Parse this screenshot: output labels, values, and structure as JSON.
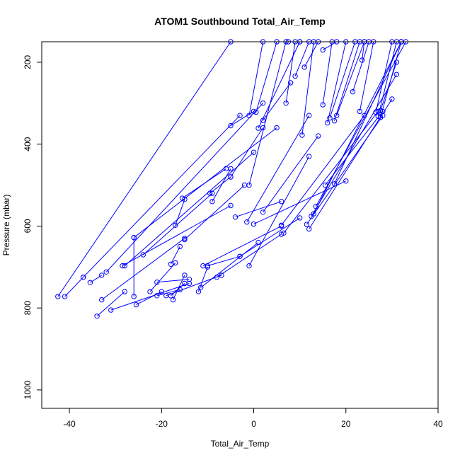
{
  "chart_data": {
    "type": "scatter",
    "title": "ATOM1 Southbound Total_Air_Temp",
    "xlabel": "Total_Air_Temp",
    "ylabel": "Pressure (mbar)",
    "xlim": [
      -46,
      40
    ],
    "ylim": [
      1045,
      150
    ],
    "y_reversed": true,
    "x_ticks": [
      -40,
      -20,
      0,
      20,
      40
    ],
    "y_ticks": [
      200,
      400,
      600,
      800,
      1000
    ],
    "grid": false,
    "color": "#0000ff",
    "series": [
      {
        "points": [
          [
            -42.5,
            772
          ],
          [
            -5,
            150
          ]
        ]
      },
      {
        "points": [
          [
            -41,
            772
          ],
          [
            -37,
            725
          ]
        ]
      },
      {
        "points": [
          [
            -37,
            725
          ],
          [
            -3,
            330
          ]
        ]
      },
      {
        "points": [
          [
            -35.5,
            738
          ],
          [
            -33,
            720
          ]
        ]
      },
      {
        "points": [
          [
            -34,
            820
          ],
          [
            -28,
            760
          ]
        ]
      },
      {
        "points": [
          [
            -33,
            780
          ],
          [
            -15,
            630
          ]
        ]
      },
      {
        "points": [
          [
            -32,
            712
          ],
          [
            2,
            300
          ]
        ]
      },
      {
        "points": [
          [
            -31,
            805
          ],
          [
            -14,
            740
          ]
        ]
      },
      {
        "points": [
          [
            -28.5,
            697
          ],
          [
            -5,
            550
          ]
        ]
      },
      {
        "points": [
          [
            -28,
            697
          ],
          [
            0,
            420
          ]
        ]
      },
      {
        "points": [
          [
            -26,
            772
          ],
          [
            -26,
            628
          ]
        ]
      },
      {
        "points": [
          [
            -26,
            628
          ],
          [
            5,
            360
          ]
        ]
      },
      {
        "points": [
          [
            -25.5,
            792
          ],
          [
            -20,
            760
          ]
        ]
      },
      {
        "points": [
          [
            -24,
            670
          ],
          [
            -9,
            520
          ]
        ]
      },
      {
        "points": [
          [
            -22.5,
            760
          ],
          [
            -17,
            690
          ]
        ]
      },
      {
        "points": [
          [
            -21,
            770
          ],
          [
            -16,
            755
          ]
        ]
      },
      {
        "points": [
          [
            -21,
            737
          ],
          [
            -14,
            730
          ]
        ]
      },
      {
        "points": [
          [
            -19,
            770
          ],
          [
            -7,
            720
          ]
        ]
      },
      {
        "points": [
          [
            -18,
            770
          ],
          [
            -15,
            740
          ]
        ]
      },
      {
        "points": [
          [
            -18,
            693
          ],
          [
            -16,
            650
          ]
        ]
      },
      {
        "points": [
          [
            -17.5,
            780
          ],
          [
            -15,
            720
          ]
        ]
      },
      {
        "points": [
          [
            -17,
            598
          ],
          [
            -15,
            535
          ]
        ]
      },
      {
        "points": [
          [
            -15.5,
            532
          ],
          [
            -6,
            460
          ]
        ]
      },
      {
        "points": [
          [
            -15,
            633
          ],
          [
            -2,
            500
          ]
        ]
      },
      {
        "points": [
          [
            -12,
            760
          ],
          [
            -10,
            700
          ]
        ]
      },
      {
        "points": [
          [
            -11.5,
            750
          ],
          [
            1,
            640
          ]
        ]
      },
      {
        "points": [
          [
            -11,
            697
          ],
          [
            6,
            600
          ]
        ]
      },
      {
        "points": [
          [
            -10,
            697
          ],
          [
            -3,
            674
          ]
        ]
      },
      {
        "points": [
          [
            -9.5,
            520
          ],
          [
            -5,
            480
          ]
        ]
      },
      {
        "points": [
          [
            -9,
            540
          ],
          [
            -5,
            460
          ]
        ]
      },
      {
        "points": [
          [
            -8,
            725
          ],
          [
            6,
            620
          ]
        ]
      },
      {
        "points": [
          [
            -5,
            480
          ],
          [
            2,
            360
          ]
        ]
      },
      {
        "points": [
          [
            -5,
            355
          ],
          [
            0,
            320
          ]
        ]
      },
      {
        "points": [
          [
            -4,
            578
          ],
          [
            6,
            540
          ]
        ]
      },
      {
        "points": [
          [
            -3,
            674
          ],
          [
            10,
            580
          ]
        ]
      },
      {
        "points": [
          [
            -1.5,
            590
          ],
          [
            12,
            330
          ]
        ]
      },
      {
        "points": [
          [
            -1,
            697
          ],
          [
            12,
            430
          ]
        ]
      },
      {
        "points": [
          [
            -1,
            500
          ],
          [
            7,
            150
          ]
        ]
      },
      {
        "points": [
          [
            -1,
            330
          ],
          [
            2,
            150
          ]
        ]
      },
      {
        "points": [
          [
            0,
            595
          ],
          [
            20,
            490
          ]
        ]
      },
      {
        "points": [
          [
            0.5,
            322
          ],
          [
            5,
            150
          ]
        ]
      },
      {
        "points": [
          [
            1,
            361
          ],
          [
            10,
            150
          ]
        ]
      },
      {
        "points": [
          [
            2,
            566
          ],
          [
            14,
            380
          ]
        ]
      },
      {
        "points": [
          [
            2,
            342
          ],
          [
            8,
            250
          ]
        ]
      },
      {
        "points": [
          [
            6,
            598
          ],
          [
            24,
            330
          ]
        ]
      },
      {
        "points": [
          [
            6.5,
            617
          ],
          [
            27,
            320
          ]
        ]
      },
      {
        "points": [
          [
            7,
            300
          ],
          [
            9,
            150
          ]
        ]
      },
      {
        "points": [
          [
            7.5,
            150
          ],
          [
            10,
            150
          ]
        ]
      },
      {
        "points": [
          [
            9,
            234
          ],
          [
            12,
            150
          ]
        ]
      },
      {
        "points": [
          [
            10.5,
            378
          ],
          [
            13,
            150
          ]
        ]
      },
      {
        "points": [
          [
            11,
            212
          ],
          [
            14,
            150
          ]
        ]
      },
      {
        "points": [
          [
            11.5,
            596
          ],
          [
            28,
            330
          ]
        ]
      },
      {
        "points": [
          [
            12,
            607
          ],
          [
            30,
            290
          ]
        ]
      },
      {
        "points": [
          [
            12.5,
            576
          ],
          [
            31,
            230
          ]
        ]
      },
      {
        "points": [
          [
            13,
            570
          ],
          [
            32,
            150
          ]
        ]
      },
      {
        "points": [
          [
            13.5,
            552
          ],
          [
            33,
            150
          ]
        ]
      },
      {
        "points": [
          [
            15,
            304
          ],
          [
            17,
            150
          ]
        ]
      },
      {
        "points": [
          [
            15,
            170
          ],
          [
            18,
            150
          ]
        ]
      },
      {
        "points": [
          [
            15.5,
            500
          ],
          [
            28,
            320
          ]
        ]
      },
      {
        "points": [
          [
            16,
            348
          ],
          [
            20,
            150
          ]
        ]
      },
      {
        "points": [
          [
            16.5,
            336
          ],
          [
            22,
            150
          ]
        ]
      },
      {
        "points": [
          [
            17.5,
            343
          ],
          [
            23,
            150
          ]
        ]
      },
      {
        "points": [
          [
            17.5,
            497
          ],
          [
            32,
            150
          ]
        ]
      },
      {
        "points": [
          [
            18,
            330
          ],
          [
            24,
            150
          ]
        ]
      },
      {
        "points": [
          [
            21.5,
            272
          ],
          [
            25,
            150
          ]
        ]
      },
      {
        "points": [
          [
            23,
            320
          ],
          [
            26,
            150
          ]
        ]
      },
      {
        "points": [
          [
            23.5,
            195
          ],
          [
            24,
            150
          ]
        ]
      },
      {
        "points": [
          [
            26.5,
            322
          ],
          [
            30,
            150
          ]
        ]
      },
      {
        "points": [
          [
            27,
            332
          ],
          [
            31,
            150
          ]
        ]
      },
      {
        "points": [
          [
            27.5,
            335
          ],
          [
            32,
            150
          ]
        ]
      },
      {
        "points": [
          [
            27.5,
            318
          ],
          [
            31,
            200
          ]
        ]
      }
    ]
  }
}
